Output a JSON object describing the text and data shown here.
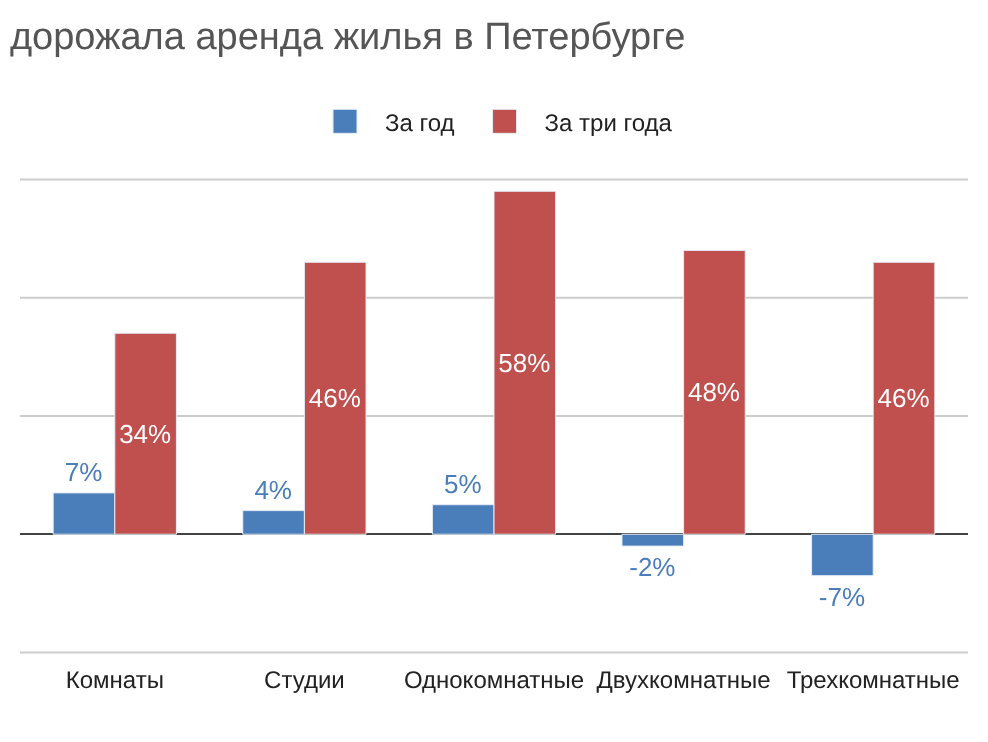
{
  "chart_data": {
    "type": "bar",
    "title": "дорожала аренда жилья в Петербурге",
    "categories": [
      "Комнаты",
      "Студии",
      "Однокомнатные",
      "Двухкомнатные",
      "Трехкомнатные"
    ],
    "series": [
      {
        "name": "За год",
        "color": "#4a7ebb",
        "values": [
          7,
          4,
          5,
          -2,
          -7
        ],
        "value_labels": [
          "7%",
          "4%",
          "5%",
          "-2%",
          "-7%"
        ]
      },
      {
        "name": "За три года",
        "color": "#c0504d",
        "values": [
          34,
          46,
          58,
          48,
          46
        ],
        "value_labels": [
          "34%",
          "46%",
          "58%",
          "48%",
          "46%"
        ]
      }
    ],
    "ref_lines": [
      {
        "axis": "y",
        "value": -20,
        "color": "#cccccc"
      },
      {
        "axis": "y",
        "value": 20,
        "color": "#cccccc"
      },
      {
        "axis": "y",
        "value": 40,
        "color": "#cccccc"
      },
      {
        "axis": "y",
        "value": 60,
        "color": "#cccccc"
      }
    ],
    "legend": "top",
    "tick_labels": "x"
  }
}
